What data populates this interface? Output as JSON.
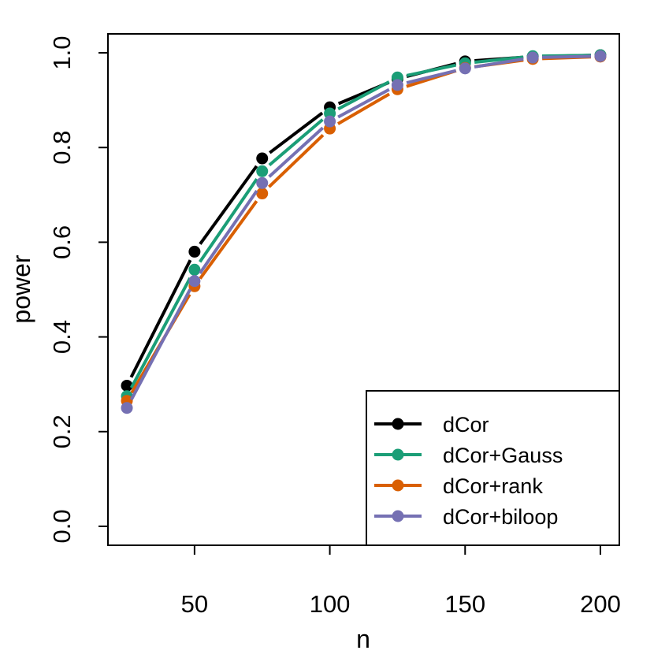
{
  "chart_data": {
    "type": "line",
    "title": "",
    "xlabel": "n",
    "ylabel": "power",
    "x": [
      25,
      50,
      75,
      100,
      125,
      150,
      175,
      200
    ],
    "xlim": [
      18,
      207
    ],
    "ylim": [
      -0.04,
      1.04
    ],
    "xticks": [
      50,
      100,
      150,
      200
    ],
    "xtick_labels": [
      "50",
      "100",
      "150",
      "200"
    ],
    "yticks": [
      0.0,
      0.2,
      0.4,
      0.6,
      0.8,
      1.0
    ],
    "ytick_labels": [
      "0.0",
      "0.2",
      "0.4",
      "0.6",
      "0.8",
      "1.0"
    ],
    "grid": false,
    "legend_position": "bottom-right",
    "series": [
      {
        "name": "dCor",
        "color": "#000000",
        "values": [
          0.297,
          0.58,
          0.777,
          0.885,
          0.945,
          0.982,
          0.992,
          0.995
        ]
      },
      {
        "name": "dCor+Gauss",
        "color": "#1B9E77",
        "values": [
          0.275,
          0.542,
          0.75,
          0.872,
          0.948,
          0.978,
          0.993,
          0.995
        ]
      },
      {
        "name": "dCor+rank",
        "color": "#D95F02",
        "values": [
          0.265,
          0.507,
          0.703,
          0.84,
          0.923,
          0.968,
          0.987,
          0.992
        ]
      },
      {
        "name": "dCor+biloop",
        "color": "#7570B3",
        "values": [
          0.25,
          0.518,
          0.725,
          0.855,
          0.932,
          0.967,
          0.99,
          0.993
        ]
      }
    ]
  }
}
